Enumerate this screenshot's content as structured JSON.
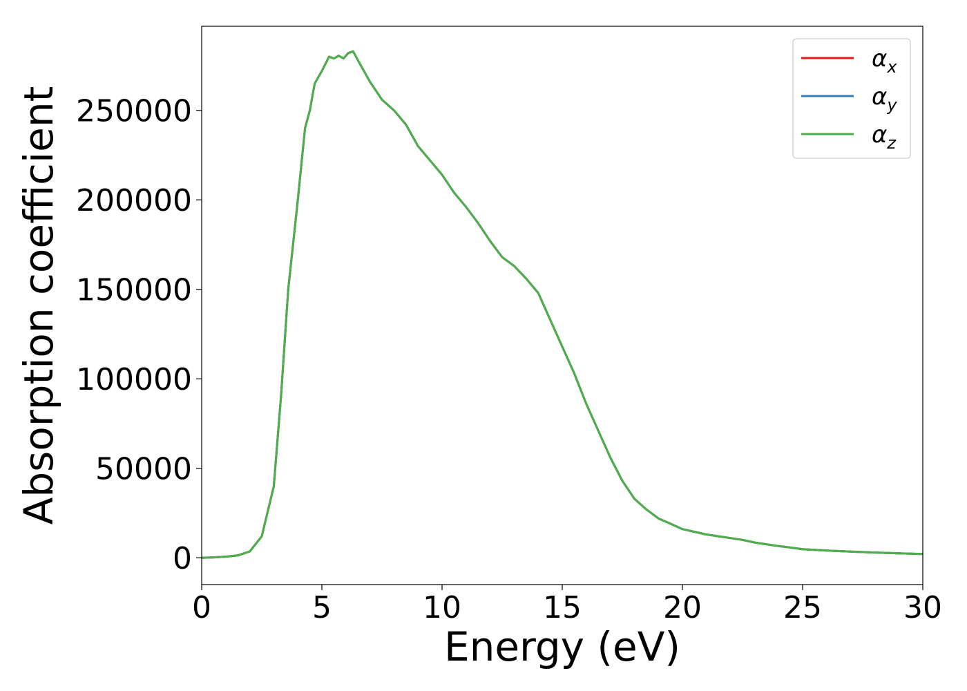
{
  "chart_data": {
    "type": "line",
    "title": "",
    "xlabel": "Energy (eV)",
    "ylabel": "Absorption coefficient",
    "xlim": [
      0,
      30
    ],
    "ylim": [
      -15000,
      297000
    ],
    "xticks": [
      0,
      5,
      10,
      15,
      20,
      25,
      30
    ],
    "yticks": [
      0,
      50000,
      100000,
      150000,
      200000,
      250000
    ],
    "xtick_labels": [
      "0",
      "5",
      "10",
      "15",
      "20",
      "25",
      "30"
    ],
    "ytick_labels": [
      "0",
      "50000",
      "100000",
      "150000",
      "200000",
      "250000"
    ],
    "grid": false,
    "legend_position": "top-right",
    "x": [
      0,
      0.5,
      1.0,
      1.5,
      2.0,
      2.5,
      3.0,
      3.3,
      3.6,
      4.0,
      4.3,
      4.5,
      4.7,
      5.0,
      5.3,
      5.5,
      5.7,
      5.9,
      6.1,
      6.3,
      6.5,
      7.0,
      7.5,
      8.0,
      8.5,
      9.0,
      9.5,
      10.0,
      10.5,
      11.0,
      11.5,
      12.0,
      12.5,
      13.0,
      13.5,
      14.0,
      14.5,
      15.0,
      15.5,
      16.0,
      16.5,
      17.0,
      17.5,
      18.0,
      18.5,
      19.0,
      19.5,
      20.0,
      20.5,
      21.0,
      21.5,
      22.0,
      22.5,
      23.0,
      24.0,
      25.0,
      26.0,
      27.0,
      28.0,
      29.0,
      30.0
    ],
    "series": [
      {
        "name": "α_x",
        "label_base": "α",
        "label_sub": "x",
        "color": "#e41a1c",
        "values": [
          0,
          200,
          600,
          1300,
          3500,
          12000,
          40000,
          90000,
          150000,
          200000,
          240000,
          250000,
          265000,
          272000,
          280000,
          279000,
          280500,
          279000,
          282000,
          283000,
          278000,
          266000,
          256000,
          250000,
          242000,
          230000,
          222000,
          214000,
          204000,
          196000,
          187000,
          177000,
          168000,
          163000,
          156000,
          148000,
          133000,
          118000,
          103000,
          86000,
          71000,
          56000,
          43000,
          33000,
          27000,
          22000,
          19000,
          16000,
          14500,
          13000,
          12000,
          11000,
          10000,
          8500,
          6500,
          4800,
          4000,
          3400,
          2900,
          2500,
          2100
        ]
      },
      {
        "name": "α_y",
        "label_base": "α",
        "label_sub": "y",
        "color": "#377eb8",
        "values": [
          0,
          200,
          600,
          1300,
          3500,
          12000,
          40000,
          90000,
          150000,
          200000,
          240000,
          250000,
          265000,
          272000,
          280000,
          279000,
          280500,
          279000,
          282000,
          283000,
          278000,
          266000,
          256000,
          250000,
          242000,
          230000,
          222000,
          214000,
          204000,
          196000,
          187000,
          177000,
          168000,
          163000,
          156000,
          148000,
          133000,
          118000,
          103000,
          86000,
          71000,
          56000,
          43000,
          33000,
          27000,
          22000,
          19000,
          16000,
          14500,
          13000,
          12000,
          11000,
          10000,
          8500,
          6500,
          4800,
          4000,
          3400,
          2900,
          2500,
          2100
        ]
      },
      {
        "name": "α_z",
        "label_base": "α",
        "label_sub": "z",
        "color": "#4daf4a",
        "values": [
          0,
          200,
          600,
          1300,
          3500,
          12000,
          40000,
          90000,
          150000,
          200000,
          240000,
          250000,
          265000,
          272000,
          280000,
          279000,
          280500,
          279000,
          282000,
          283000,
          278000,
          266000,
          256000,
          250000,
          242000,
          230000,
          222000,
          214000,
          204000,
          196000,
          187000,
          177000,
          168000,
          163000,
          156000,
          148000,
          133000,
          118000,
          103000,
          86000,
          71000,
          56000,
          43000,
          33000,
          27000,
          22000,
          19000,
          16000,
          14500,
          13000,
          12000,
          11000,
          10000,
          8500,
          6500,
          4800,
          4000,
          3400,
          2900,
          2500,
          2100
        ]
      }
    ]
  }
}
